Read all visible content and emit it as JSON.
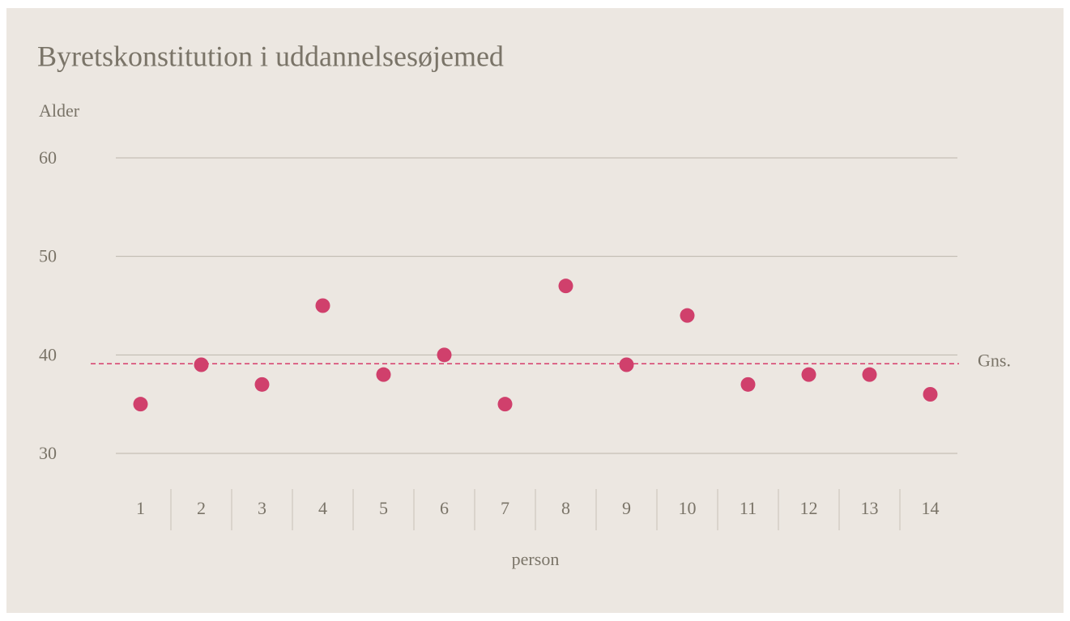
{
  "chart_data": {
    "type": "dot",
    "title": "Byretskonstitution i uddannelsesøjemed",
    "y_label": "Alder",
    "x_label": "person",
    "categories": [
      "1",
      "2",
      "3",
      "4",
      "5",
      "6",
      "7",
      "8",
      "9",
      "10",
      "11",
      "12",
      "13",
      "14"
    ],
    "values": [
      35,
      39,
      37,
      45,
      38,
      40,
      35,
      47,
      39,
      44,
      37,
      38,
      38,
      36
    ],
    "color": "#d0406c",
    "ylim": [
      30,
      60
    ],
    "yticks": [
      30,
      40,
      50,
      60
    ],
    "grid": true,
    "reference": {
      "value": 39.1,
      "label": "Gns.",
      "color": "#d63c6b"
    }
  }
}
